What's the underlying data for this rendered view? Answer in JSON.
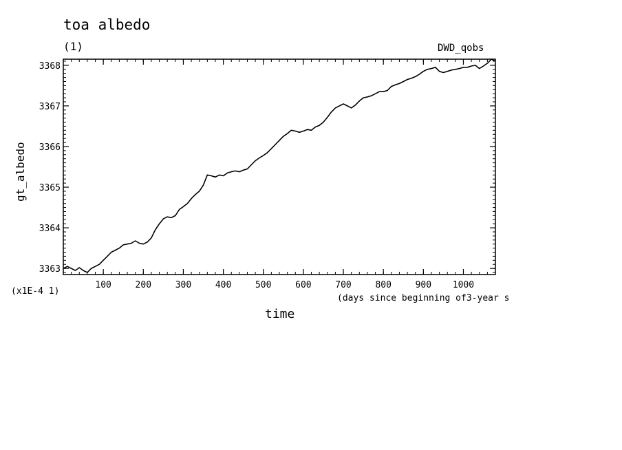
{
  "chart_data": {
    "type": "line",
    "title": "toa albedo",
    "subtitle": "(1)",
    "source_label": "DWD_qobs",
    "xlabel": "time",
    "xlabel_units": "(days since beginning of3-year s",
    "ylabel": "gt_albedo",
    "y_scale_note": "(x1E-4 1)",
    "xlim": [
      0,
      1080
    ],
    "ylim": [
      3362.85,
      3368.15
    ],
    "x_ticks": [
      100,
      200,
      300,
      400,
      500,
      600,
      700,
      800,
      900,
      1000
    ],
    "y_ticks": [
      3363,
      3364,
      3365,
      3366,
      3367,
      3368
    ],
    "grid": false,
    "series": [
      {
        "x": [
          0,
          10,
          20,
          30,
          40,
          50,
          60,
          70,
          80,
          90,
          100,
          110,
          120,
          130,
          140,
          150,
          160,
          170,
          180,
          190,
          200,
          210,
          220,
          230,
          240,
          250,
          260,
          270,
          280,
          290,
          300,
          310,
          320,
          330,
          340,
          350,
          360,
          370,
          380,
          390,
          400,
          410,
          420,
          430,
          440,
          450,
          460,
          470,
          480,
          490,
          500,
          510,
          520,
          530,
          540,
          550,
          560,
          570,
          580,
          590,
          600,
          610,
          620,
          630,
          640,
          650,
          660,
          670,
          680,
          690,
          700,
          710,
          720,
          730,
          740,
          750,
          760,
          770,
          780,
          790,
          800,
          810,
          820,
          830,
          840,
          850,
          860,
          870,
          880,
          890,
          900,
          910,
          920,
          930,
          940,
          950,
          960,
          970,
          980,
          990,
          1000,
          1010,
          1020,
          1030,
          1040,
          1050,
          1060,
          1070,
          1080
        ],
        "values": [
          3363.0,
          3363.05,
          3363.0,
          3362.95,
          3363.02,
          3362.95,
          3362.9,
          3363.0,
          3363.05,
          3363.1,
          3363.2,
          3363.3,
          3363.4,
          3363.45,
          3363.5,
          3363.58,
          3363.6,
          3363.62,
          3363.68,
          3363.62,
          3363.6,
          3363.65,
          3363.75,
          3363.95,
          3364.1,
          3364.22,
          3364.27,
          3364.25,
          3364.3,
          3364.45,
          3364.52,
          3364.6,
          3364.72,
          3364.82,
          3364.9,
          3365.05,
          3365.3,
          3365.28,
          3365.25,
          3365.3,
          3365.28,
          3365.35,
          3365.38,
          3365.4,
          3365.38,
          3365.42,
          3365.45,
          3365.55,
          3365.65,
          3365.72,
          3365.78,
          3365.85,
          3365.95,
          3366.05,
          3366.15,
          3366.25,
          3366.32,
          3366.4,
          3366.38,
          3366.35,
          3366.38,
          3366.42,
          3366.4,
          3366.48,
          3366.52,
          3366.6,
          3366.72,
          3366.85,
          3366.95,
          3367.0,
          3367.05,
          3367.0,
          3366.95,
          3367.02,
          3367.12,
          3367.2,
          3367.22,
          3367.25,
          3367.3,
          3367.35,
          3367.35,
          3367.38,
          3367.48,
          3367.52,
          3367.55,
          3367.6,
          3367.65,
          3367.68,
          3367.72,
          3367.78,
          3367.85,
          3367.9,
          3367.92,
          3367.95,
          3367.85,
          3367.82,
          3367.85,
          3367.88,
          3367.9,
          3367.92,
          3367.95,
          3367.95,
          3367.98,
          3368.0,
          3367.92,
          3367.98,
          3368.05,
          3368.15,
          3368.1
        ]
      }
    ]
  }
}
